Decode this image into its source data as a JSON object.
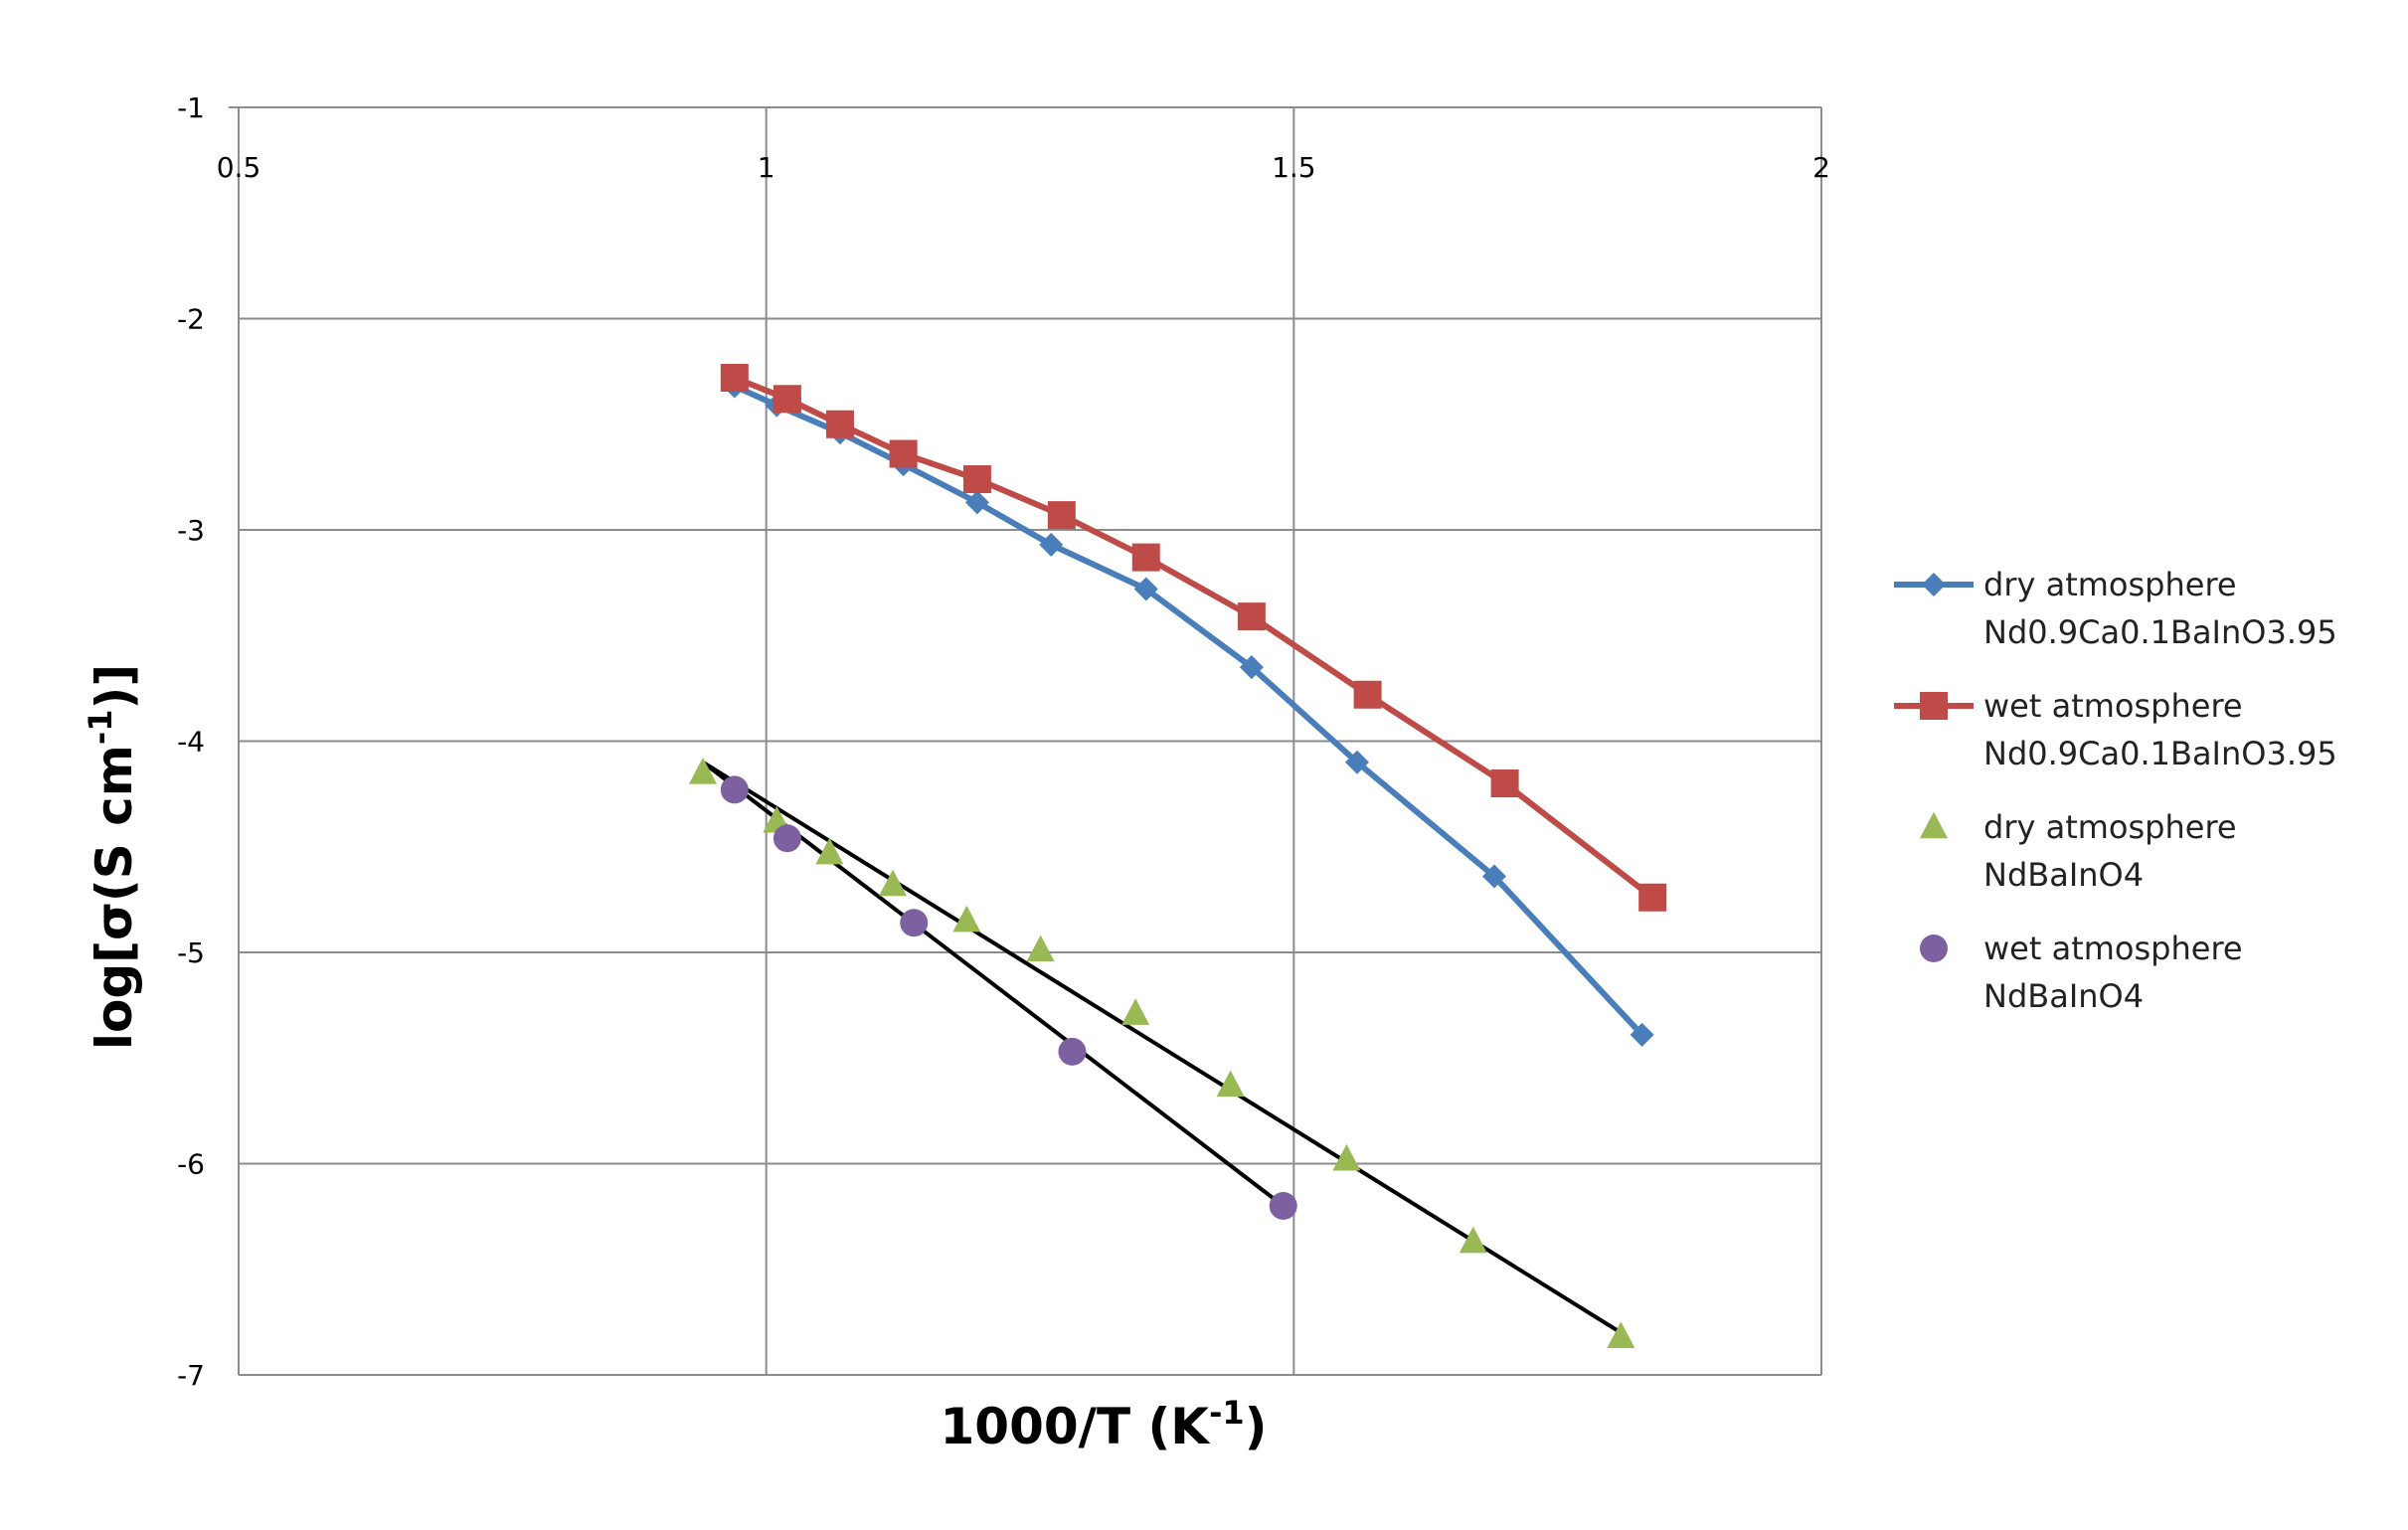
{
  "chart_data": {
    "type": "scatter",
    "xlabel": {
      "base": "1000/T (K",
      "sup": "-1",
      "tail": ")"
    },
    "ylabel": {
      "base": "log[σ(S cm",
      "sup": "-1",
      "tail": ")]"
    },
    "xlim": [
      0.5,
      2
    ],
    "ylim": [
      -7,
      -1
    ],
    "x_ticks": [
      {
        "value": 0.5,
        "label": "0.5"
      },
      {
        "value": 1,
        "label": "1"
      },
      {
        "value": 1.5,
        "label": "1.5"
      },
      {
        "value": 2,
        "label": "2"
      }
    ],
    "y_ticks": [
      {
        "value": -1,
        "label": "-1"
      },
      {
        "value": -2,
        "label": "-2"
      },
      {
        "value": -3,
        "label": "-3"
      },
      {
        "value": -4,
        "label": "-4"
      },
      {
        "value": -5,
        "label": "-5"
      },
      {
        "value": -6,
        "label": "-6"
      },
      {
        "value": -7,
        "label": "-7"
      }
    ],
    "grid": true,
    "legend_position": "right",
    "series": [
      {
        "label_lines": [
          "dry atmosphere",
          "Nd0.9Ca0.1BaInO3.95"
        ],
        "marker": "diamond",
        "color": "#4A7EBB",
        "connected": true,
        "points": [
          [
            0.97,
            -2.32
          ],
          [
            1.01,
            -2.41
          ],
          [
            1.07,
            -2.54
          ],
          [
            1.13,
            -2.69
          ],
          [
            1.2,
            -2.87
          ],
          [
            1.27,
            -3.07
          ],
          [
            1.36,
            -3.28
          ],
          [
            1.46,
            -3.65
          ],
          [
            1.56,
            -4.1
          ],
          [
            1.69,
            -4.64
          ],
          [
            1.83,
            -5.39
          ]
        ]
      },
      {
        "label_lines": [
          "wet atmosphere",
          "Nd0.9Ca0.1BaInO3.95"
        ],
        "marker": "square",
        "color": "#BE4B48",
        "connected": true,
        "points": [
          [
            0.97,
            -2.28
          ],
          [
            1.02,
            -2.38
          ],
          [
            1.07,
            -2.5
          ],
          [
            1.13,
            -2.64
          ],
          [
            1.2,
            -2.76
          ],
          [
            1.28,
            -2.93
          ],
          [
            1.36,
            -3.13
          ],
          [
            1.46,
            -3.41
          ],
          [
            1.57,
            -3.78
          ],
          [
            1.7,
            -4.2
          ],
          [
            1.84,
            -4.74
          ]
        ]
      },
      {
        "label_lines": [
          "dry atmosphere",
          "NdBaInO4"
        ],
        "marker": "triangle",
        "color": "#98B954",
        "connected": false,
        "points": [
          [
            0.94,
            -4.15
          ],
          [
            1.01,
            -4.38
          ],
          [
            1.06,
            -4.53
          ],
          [
            1.12,
            -4.68
          ],
          [
            1.19,
            -4.85
          ],
          [
            1.26,
            -4.99
          ],
          [
            1.35,
            -5.29
          ],
          [
            1.44,
            -5.63
          ],
          [
            1.55,
            -5.98
          ],
          [
            1.67,
            -6.37
          ],
          [
            1.81,
            -6.82
          ]
        ],
        "fit_line": [
          [
            0.94,
            -4.1
          ],
          [
            1.81,
            -6.8
          ]
        ]
      },
      {
        "label_lines": [
          "wet atmosphere",
          "NdBaInO4"
        ],
        "marker": "circle",
        "color": "#7D60A0",
        "connected": false,
        "points": [
          [
            0.97,
            -4.23
          ],
          [
            1.02,
            -4.46
          ],
          [
            1.14,
            -4.86
          ],
          [
            1.29,
            -5.47
          ],
          [
            1.49,
            -6.2
          ]
        ],
        "fit_line": [
          [
            0.94,
            -4.1
          ],
          [
            1.49,
            -6.2
          ]
        ]
      }
    ],
    "fit_line_color": "#000000"
  }
}
